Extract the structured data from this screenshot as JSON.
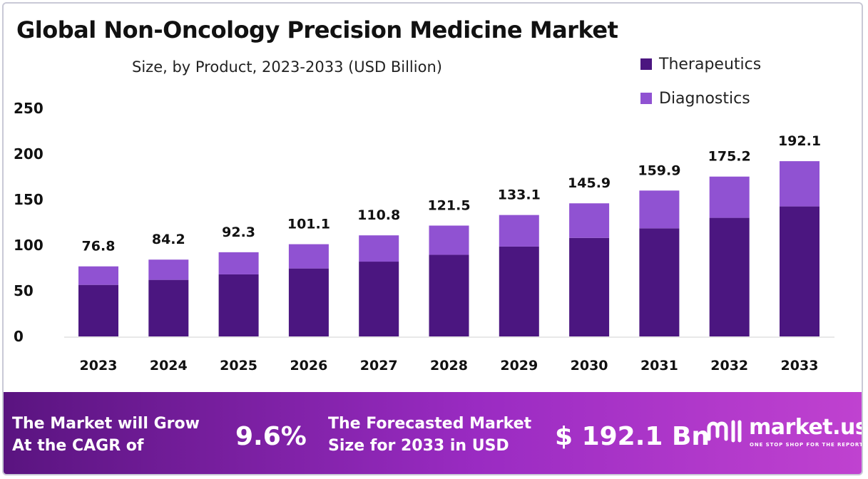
{
  "header": {
    "title": "Global Non-Oncology Precision Medicine Market",
    "subtitle": "Size, by Product, 2023-2033 (USD Billion)"
  },
  "legend": {
    "therapeutics": "Therapeutics",
    "diagnostics": "Diagnostics"
  },
  "colors": {
    "therapeutics": "#4b1680",
    "diagnostics": "#9052d2"
  },
  "chart_data": {
    "type": "bar",
    "stacked": true,
    "categories": [
      "2023",
      "2024",
      "2025",
      "2026",
      "2027",
      "2028",
      "2029",
      "2030",
      "2031",
      "2032",
      "2033"
    ],
    "series": [
      {
        "name": "Therapeutics",
        "values": [
          56.5,
          62.0,
          68.0,
          74.5,
          82.0,
          89.5,
          98.5,
          108.0,
          118.5,
          130.0,
          142.5
        ]
      },
      {
        "name": "Diagnostics",
        "values": [
          20.3,
          22.2,
          24.3,
          26.6,
          28.8,
          32.0,
          34.6,
          37.9,
          41.4,
          45.2,
          49.6
        ]
      }
    ],
    "totals": [
      "76.8",
      "84.2",
      "92.3",
      "101.1",
      "110.8",
      "121.5",
      "133.1",
      "145.9",
      "159.9",
      "175.2",
      "192.1"
    ],
    "yticks": [
      "0",
      "50",
      "100",
      "150",
      "200",
      "250"
    ],
    "ylim": [
      0,
      250
    ],
    "grid": false,
    "legend_position": "top-right"
  },
  "footer": {
    "cagr_line1": "The Market will Grow",
    "cagr_line2": "At the CAGR of",
    "cagr_value": "9.6%",
    "forecast_line1": "The Forecasted Market",
    "forecast_line2": "Size for 2033 in USD",
    "forecast_value": "$ 192.1 Bn",
    "brand_name": "market.us",
    "brand_tagline": "ONE STOP SHOP FOR THE REPORTS",
    "brand_icon": "market-us-logo-icon"
  }
}
